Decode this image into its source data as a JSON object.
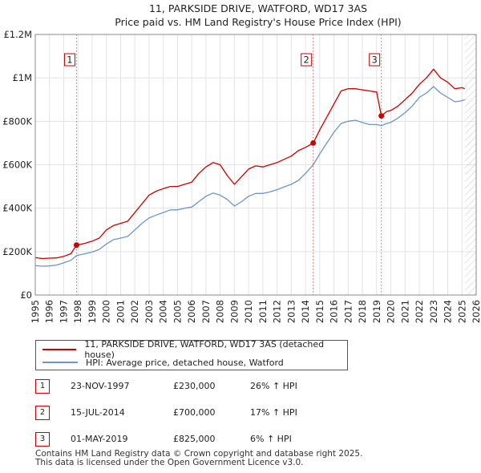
{
  "chart_data": {
    "type": "line",
    "title": "11, PARKSIDE DRIVE, WATFORD, WD17 3AS",
    "subtitle": "Price paid vs. HM Land Registry's House Price Index (HPI)",
    "xlim": [
      1995,
      2026
    ],
    "ylim": [
      0,
      1200000
    ],
    "x_ticks": [
      "1995",
      "1996",
      "1997",
      "1998",
      "1999",
      "2000",
      "2001",
      "2002",
      "2003",
      "2004",
      "2005",
      "2006",
      "2007",
      "2008",
      "2009",
      "2010",
      "2011",
      "2012",
      "2013",
      "2014",
      "2015",
      "2016",
      "2017",
      "2018",
      "2019",
      "2020",
      "2021",
      "2022",
      "2023",
      "2024",
      "2025",
      "2026"
    ],
    "y_ticks": [
      {
        "value": 0,
        "label": "£0"
      },
      {
        "value": 200000,
        "label": "£200K"
      },
      {
        "value": 400000,
        "label": "£400K"
      },
      {
        "value": 600000,
        "label": "£600K"
      },
      {
        "value": 800000,
        "label": "£800K"
      },
      {
        "value": 1000000,
        "label": "£1M"
      },
      {
        "value": 1200000,
        "label": "£1.2M"
      }
    ],
    "hatched_region_start": 2025.2,
    "series": [
      {
        "name": "11, PARKSIDE DRIVE, WATFORD, WD17 3AS (detached house)",
        "color": "#cc0000",
        "points": [
          [
            1995.0,
            172000
          ],
          [
            1995.5,
            168000
          ],
          [
            1996.0,
            170000
          ],
          [
            1996.5,
            171000
          ],
          [
            1997.0,
            178000
          ],
          [
            1997.5,
            190000
          ],
          [
            1997.9,
            230000
          ],
          [
            1998.5,
            238000
          ],
          [
            1999.0,
            248000
          ],
          [
            1999.5,
            262000
          ],
          [
            2000.0,
            300000
          ],
          [
            2000.5,
            320000
          ],
          [
            2001.0,
            330000
          ],
          [
            2001.5,
            340000
          ],
          [
            2002.0,
            380000
          ],
          [
            2002.5,
            420000
          ],
          [
            2003.0,
            460000
          ],
          [
            2003.5,
            478000
          ],
          [
            2004.0,
            490000
          ],
          [
            2004.5,
            500000
          ],
          [
            2005.0,
            500000
          ],
          [
            2005.5,
            510000
          ],
          [
            2006.0,
            520000
          ],
          [
            2006.5,
            560000
          ],
          [
            2007.0,
            590000
          ],
          [
            2007.5,
            610000
          ],
          [
            2008.0,
            600000
          ],
          [
            2008.5,
            550000
          ],
          [
            2009.0,
            510000
          ],
          [
            2009.5,
            545000
          ],
          [
            2010.0,
            580000
          ],
          [
            2010.5,
            595000
          ],
          [
            2011.0,
            590000
          ],
          [
            2011.5,
            600000
          ],
          [
            2012.0,
            610000
          ],
          [
            2012.5,
            625000
          ],
          [
            2013.0,
            640000
          ],
          [
            2013.5,
            665000
          ],
          [
            2014.0,
            680000
          ],
          [
            2014.54,
            700000
          ],
          [
            2015.0,
            760000
          ],
          [
            2015.5,
            820000
          ],
          [
            2016.0,
            880000
          ],
          [
            2016.5,
            940000
          ],
          [
            2017.0,
            950000
          ],
          [
            2017.5,
            950000
          ],
          [
            2018.0,
            945000
          ],
          [
            2018.5,
            940000
          ],
          [
            2019.0,
            935000
          ],
          [
            2019.33,
            825000
          ],
          [
            2019.7,
            845000
          ],
          [
            2020.0,
            850000
          ],
          [
            2020.5,
            870000
          ],
          [
            2021.0,
            900000
          ],
          [
            2021.5,
            930000
          ],
          [
            2022.0,
            970000
          ],
          [
            2022.5,
            1000000
          ],
          [
            2023.0,
            1040000
          ],
          [
            2023.5,
            1000000
          ],
          [
            2024.0,
            980000
          ],
          [
            2024.5,
            950000
          ],
          [
            2025.0,
            955000
          ],
          [
            2025.2,
            950000
          ]
        ]
      },
      {
        "name": "HPI: Average price, detached house, Watford",
        "color": "#6b95cc",
        "points": [
          [
            1995.0,
            135000
          ],
          [
            1995.5,
            133000
          ],
          [
            1996.0,
            134000
          ],
          [
            1996.5,
            138000
          ],
          [
            1997.0,
            148000
          ],
          [
            1997.5,
            160000
          ],
          [
            1997.9,
            182000
          ],
          [
            1998.5,
            190000
          ],
          [
            1999.0,
            198000
          ],
          [
            1999.5,
            210000
          ],
          [
            2000.0,
            235000
          ],
          [
            2000.5,
            255000
          ],
          [
            2001.0,
            262000
          ],
          [
            2001.5,
            270000
          ],
          [
            2002.0,
            300000
          ],
          [
            2002.5,
            330000
          ],
          [
            2003.0,
            355000
          ],
          [
            2003.5,
            368000
          ],
          [
            2004.0,
            380000
          ],
          [
            2004.5,
            392000
          ],
          [
            2005.0,
            392000
          ],
          [
            2005.5,
            400000
          ],
          [
            2006.0,
            405000
          ],
          [
            2006.5,
            430000
          ],
          [
            2007.0,
            455000
          ],
          [
            2007.5,
            470000
          ],
          [
            2008.0,
            460000
          ],
          [
            2008.5,
            440000
          ],
          [
            2009.0,
            410000
          ],
          [
            2009.5,
            430000
          ],
          [
            2010.0,
            455000
          ],
          [
            2010.5,
            468000
          ],
          [
            2011.0,
            468000
          ],
          [
            2011.5,
            475000
          ],
          [
            2012.0,
            485000
          ],
          [
            2012.5,
            498000
          ],
          [
            2013.0,
            510000
          ],
          [
            2013.5,
            528000
          ],
          [
            2014.0,
            560000
          ],
          [
            2014.54,
            600000
          ],
          [
            2015.0,
            650000
          ],
          [
            2015.5,
            700000
          ],
          [
            2016.0,
            750000
          ],
          [
            2016.5,
            790000
          ],
          [
            2017.0,
            800000
          ],
          [
            2017.5,
            805000
          ],
          [
            2018.0,
            795000
          ],
          [
            2018.5,
            785000
          ],
          [
            2019.0,
            785000
          ],
          [
            2019.33,
            780000
          ],
          [
            2019.7,
            790000
          ],
          [
            2020.0,
            795000
          ],
          [
            2020.5,
            815000
          ],
          [
            2021.0,
            840000
          ],
          [
            2021.5,
            870000
          ],
          [
            2022.0,
            910000
          ],
          [
            2022.5,
            930000
          ],
          [
            2023.0,
            960000
          ],
          [
            2023.5,
            930000
          ],
          [
            2024.0,
            910000
          ],
          [
            2024.5,
            890000
          ],
          [
            2025.0,
            895000
          ],
          [
            2025.2,
            900000
          ]
        ]
      }
    ],
    "sales": [
      {
        "label": "1",
        "x": 1997.9,
        "value": 230000,
        "date": "23-NOV-1997",
        "price": "£230,000",
        "hpi": "26% ↑ HPI"
      },
      {
        "label": "2",
        "x": 2014.54,
        "value": 700000,
        "date": "15-JUL-2014",
        "price": "£700,000",
        "hpi": "17% ↑ HPI"
      },
      {
        "label": "3",
        "x": 2019.33,
        "value": 825000,
        "date": "01-MAY-2019",
        "price": "£825,000",
        "hpi": "6% ↑ HPI"
      }
    ]
  },
  "legend": {
    "property": "11, PARKSIDE DRIVE, WATFORD, WD17 3AS (detached house)",
    "hpi": "HPI: Average price, detached house, Watford"
  },
  "footer": {
    "line1": "Contains HM Land Registry data © Crown copyright and database right 2025.",
    "line2": "This data is licensed under the Open Government Licence v3.0."
  }
}
